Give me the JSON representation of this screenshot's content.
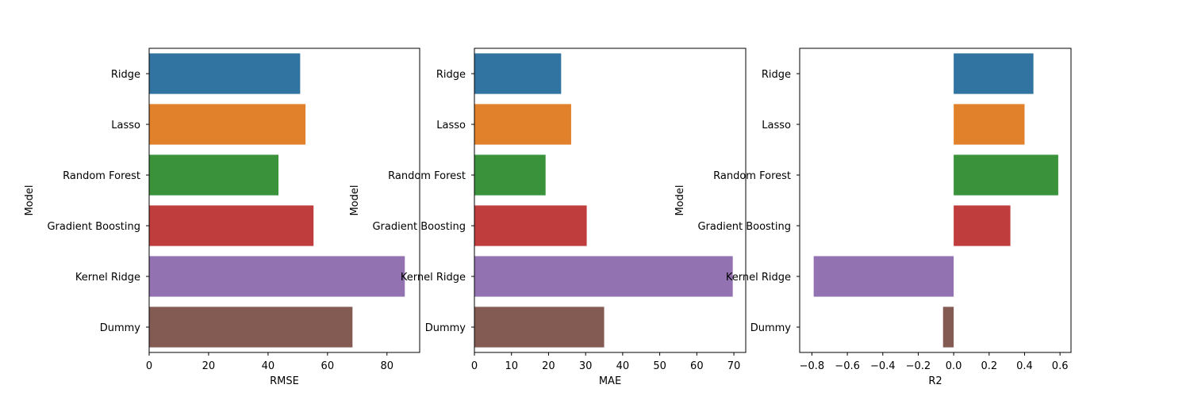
{
  "chart_data": [
    {
      "type": "bar",
      "orientation": "horizontal",
      "categories": [
        "Ridge",
        "Lasso",
        "Random Forest",
        "Gradient Boosting",
        "Kernel Ridge",
        "Dummy"
      ],
      "values": [
        50.8,
        52.6,
        43.5,
        55.3,
        86.0,
        68.4
      ],
      "xlabel": "RMSE",
      "ylabel": "Model",
      "xlim": [
        0,
        91
      ],
      "xticks": [
        0,
        20,
        40,
        60,
        80
      ],
      "xtick_labels": [
        "0",
        "20",
        "40",
        "60",
        "80"
      ],
      "grid": false
    },
    {
      "type": "bar",
      "orientation": "horizontal",
      "categories": [
        "Ridge",
        "Lasso",
        "Random Forest",
        "Gradient Boosting",
        "Kernel Ridge",
        "Dummy"
      ],
      "values": [
        23.4,
        26.1,
        19.2,
        30.3,
        69.7,
        35.0
      ],
      "xlabel": "MAE",
      "ylabel": "Model",
      "xlim": [
        0,
        73.2
      ],
      "xticks": [
        0,
        10,
        20,
        30,
        40,
        50,
        60,
        70
      ],
      "xtick_labels": [
        "0",
        "10",
        "20",
        "30",
        "40",
        "50",
        "60",
        "70"
      ],
      "grid": false
    },
    {
      "type": "bar",
      "orientation": "horizontal",
      "categories": [
        "Ridge",
        "Lasso",
        "Random Forest",
        "Gradient Boosting",
        "Kernel Ridge",
        "Dummy"
      ],
      "values": [
        0.45,
        0.4,
        0.59,
        0.32,
        -0.79,
        -0.06
      ],
      "xlabel": "R2",
      "ylabel": "Model",
      "xlim": [
        -0.869,
        0.662
      ],
      "xticks": [
        -0.8,
        -0.6,
        -0.4,
        -0.2,
        0.0,
        0.2,
        0.4,
        0.6
      ],
      "xtick_labels": [
        "−0.8",
        "−0.6",
        "−0.4",
        "−0.2",
        "0.0",
        "0.2",
        "0.4",
        "0.6"
      ],
      "grid": false
    }
  ],
  "colors": [
    "#3274a1",
    "#e1812c",
    "#3a923a",
    "#c03d3e",
    "#9372b2",
    "#845b53"
  ]
}
